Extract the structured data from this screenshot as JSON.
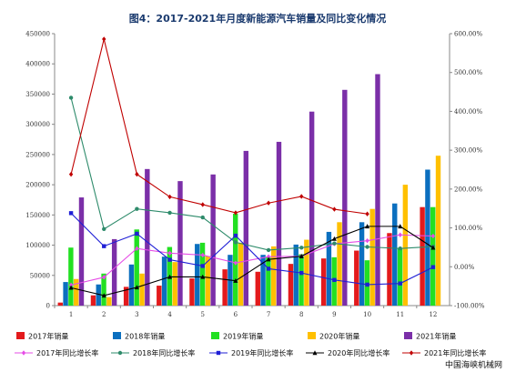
{
  "chart_data": {
    "type": "bar",
    "title": "图4：2017-2021年月度新能源汽车销量及同比变化情况",
    "categories": [
      "1",
      "2",
      "3",
      "4",
      "5",
      "6",
      "7",
      "8",
      "9",
      "10",
      "11",
      "12"
    ],
    "y_left": {
      "min": 0,
      "max": 450000,
      "step": 50000,
      "ticks": [
        "0",
        "50000",
        "100000",
        "150000",
        "200000",
        "250000",
        "300000",
        "350000",
        "400000",
        "450000"
      ]
    },
    "y_right": {
      "min": -100,
      "max": 600,
      "step": 100,
      "ticks": [
        "-100.00%",
        "0.00%",
        "100.00%",
        "200.00%",
        "300.00%",
        "400.00%",
        "500.00%",
        "600.00%"
      ]
    },
    "bar_series": [
      {
        "name": "2017年销量",
        "color": "#e31a1c",
        "values": [
          5000,
          17000,
          31000,
          33000,
          45000,
          60000,
          56000,
          69000,
          78000,
          91000,
          120000,
          163000
        ]
      },
      {
        "name": "2018年销量",
        "color": "#0b6fbf",
        "values": [
          39000,
          35000,
          68000,
          81000,
          102000,
          84000,
          84000,
          101000,
          122000,
          138000,
          169000,
          225000
        ]
      },
      {
        "name": "2019年销量",
        "color": "#22e022",
        "values": [
          96000,
          53000,
          126000,
          97000,
          104000,
          152000,
          80000,
          85000,
          80000,
          75000,
          95000,
          163000
        ]
      },
      {
        "name": "2020年销量",
        "color": "#ffc000",
        "values": [
          44000,
          14000,
          53000,
          72000,
          82000,
          104000,
          98000,
          109000,
          138000,
          160000,
          200000,
          248000
        ]
      },
      {
        "name": "2021年销量",
        "color": "#7b2fa8",
        "values": [
          179000,
          110000,
          226000,
          206000,
          217000,
          256000,
          271000,
          321000,
          357000,
          383000,
          0,
          0
        ]
      }
    ],
    "line_series": [
      {
        "name": "2017年同比增长率",
        "color": "#e64ce6",
        "marker": "diamond",
        "values": [
          -47,
          -27,
          47,
          35,
          30,
          10,
          26,
          27,
          59,
          67,
          82,
          79
        ]
      },
      {
        "name": "2018年同比增长率",
        "color": "#2e8b6b",
        "marker": "circle",
        "values": [
          435,
          97,
          149,
          139,
          127,
          63,
          43,
          49,
          60,
          51,
          47,
          52
        ]
      },
      {
        "name": "2019年同比增长率",
        "color": "#1f1fd6",
        "marker": "square",
        "values": [
          138,
          53,
          85,
          18,
          2,
          80,
          -5,
          -16,
          -34,
          -46,
          -43,
          -1
        ]
      },
      {
        "name": "2020年同比增长率",
        "color": "#000000",
        "marker": "triangle",
        "values": [
          -54,
          -74,
          -53,
          -26,
          -26,
          -36,
          19,
          27,
          72,
          104,
          104,
          49
        ]
      },
      {
        "name": "2021年同比增长率",
        "color": "#c00000",
        "marker": "diamond",
        "values": [
          238,
          586,
          238,
          180,
          160,
          139,
          164,
          181,
          148,
          136,
          null,
          null
        ]
      }
    ],
    "legend_position": "bottom",
    "grid": false
  },
  "watermark": "中国海峡机械网"
}
